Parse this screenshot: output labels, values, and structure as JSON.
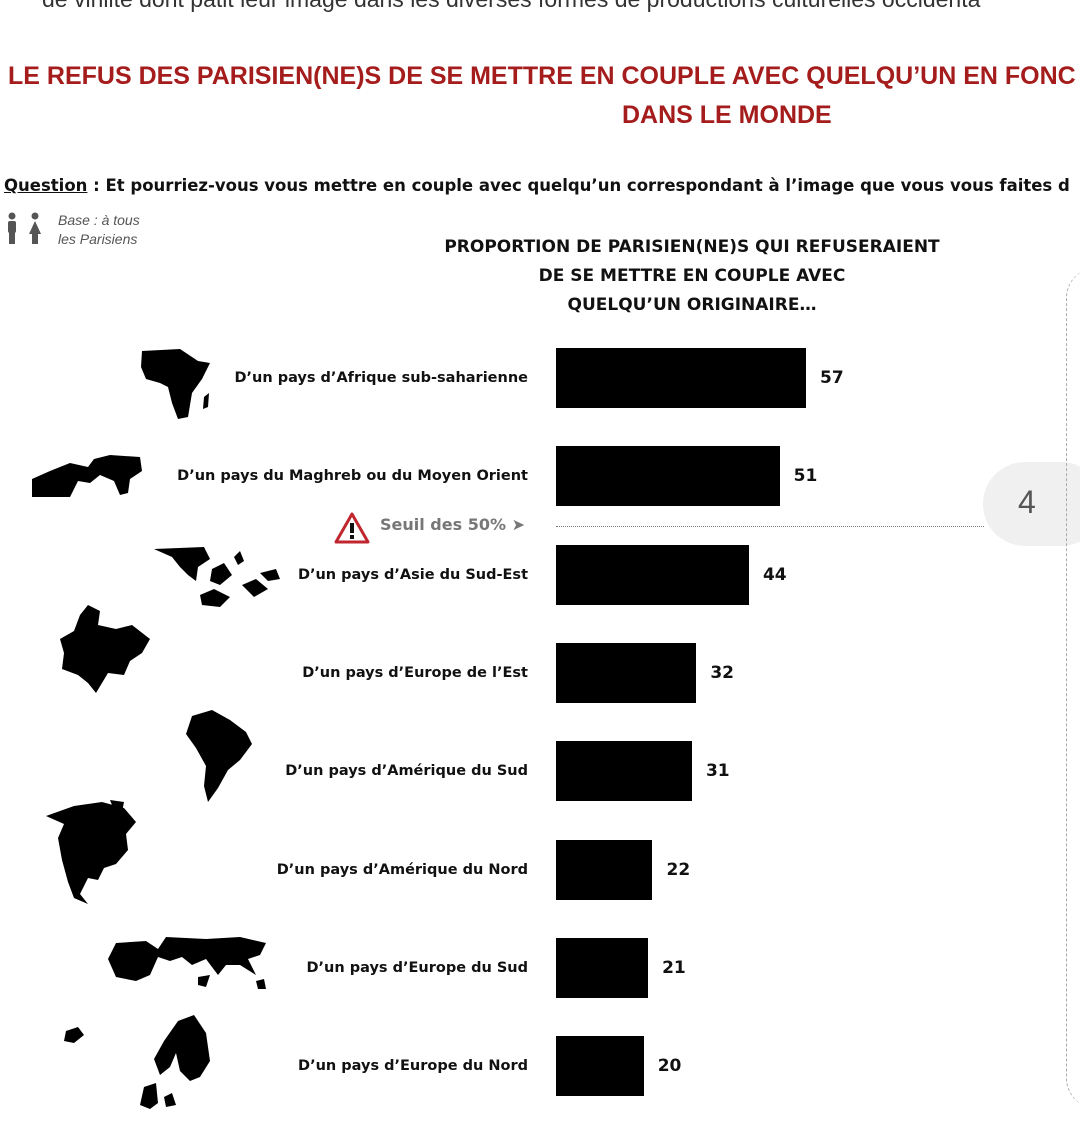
{
  "header": {
    "intro_text": "de virilité dont pâtit leur image dans les diverses formes de productions culturelles occidenta",
    "title_line1": "LE REFUS DES PARISIEN(NE)S DE SE METTRE EN COUPLE AVEC QUELQU’UN  EN FONC",
    "title_line2": "DANS LE MONDE",
    "question_label": "Question",
    "question_text": " : Et pourriez-vous vous mettre en couple avec quelqu’un correspondant à l’image que vous vous faites d",
    "base_line1": "Base :  à tous",
    "base_line2": "les Parisiens"
  },
  "page_number": "4",
  "threshold": {
    "label": "Seuil des 50% ➤",
    "value": 50
  },
  "colors": {
    "title": "#a51c1c",
    "bar": "#000000",
    "threshold": "#777777"
  },
  "chart_data": {
    "type": "bar",
    "orientation": "horizontal",
    "title_lines": [
      "PROPORTION DE PARISIEN(NE)S QUI REFUSERAIENT",
      "DE SE METTRE EN COUPLE AVEC",
      "QUELQU’UN ORIGINAIRE…"
    ],
    "categories": [
      "D’un pays d’Afrique sub-saharienne",
      "D’un pays du Maghreb ou du Moyen Orient",
      "D’un pays d’Asie du Sud-Est",
      "D’un pays d’Europe de l’Est",
      "D’un pays d’Amérique du Sud",
      "D’un pays d’Amérique du Nord",
      "D’un pays d’Europe du Sud",
      "D’un pays d’Europe du Nord"
    ],
    "values": [
      57,
      51,
      44,
      32,
      31,
      22,
      21,
      20
    ],
    "region_icons": [
      "africa-map-icon",
      "maghreb-middle-east-map-icon",
      "southeast-asia-map-icon",
      "eastern-europe-map-icon",
      "south-america-map-icon",
      "north-america-map-icon",
      "southern-europe-map-icon",
      "northern-europe-map-icon"
    ]
  }
}
